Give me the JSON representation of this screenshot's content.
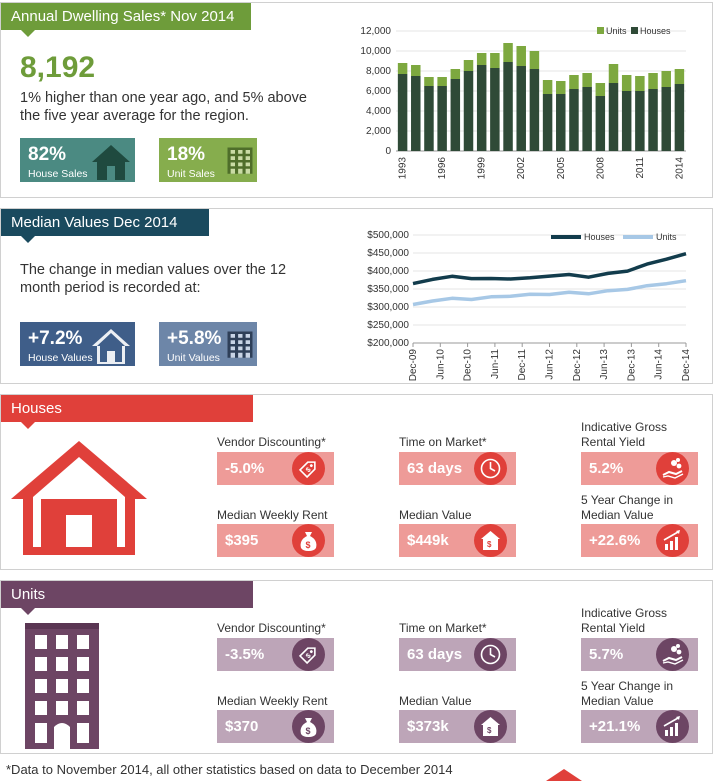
{
  "sales": {
    "tab_title": "Annual Dwelling Sales* Nov 2014",
    "big_number": "8,192",
    "description": "1% higher than one year ago, and 5% above the five year average for the region.",
    "tiles": [
      {
        "value": "82%",
        "label": "House Sales"
      },
      {
        "value": "18%",
        "label": "Unit Sales"
      }
    ],
    "colors": {
      "accent": "#6e9c3a",
      "houses": "#2f4a37",
      "units": "#7da83f",
      "tile_house": "#4b8a82",
      "tile_unit": "#86ad4d"
    }
  },
  "median": {
    "tab_title": "Median Values Dec 2014",
    "description": "The change in median values over the 12 month period is  recorded at:",
    "tiles": [
      {
        "value": "+7.2%",
        "label": "House Values"
      },
      {
        "value": "+5.8%",
        "label": "Unit Values"
      }
    ],
    "colors": {
      "accent": "#1a4a5e",
      "tile_house": "#3f5e89",
      "tile_unit": "#6d86a8",
      "houses_line": "#123c4c",
      "units_line": "#a7c8e6"
    }
  },
  "houses": {
    "tab_title": "Houses",
    "color": "#e0403a",
    "box_color": "#ee9b98",
    "stats": [
      {
        "label": "Vendor Discounting*",
        "value": "-5.0%",
        "icon": "tag-icon"
      },
      {
        "label": "Time on Market*",
        "value": "63 days",
        "icon": "clock-icon"
      },
      {
        "label": "Indicative Gross Rental Yield",
        "value": "5.2%",
        "icon": "hand-coins-icon"
      },
      {
        "label": "Median Weekly Rent",
        "value": "$395",
        "icon": "money-bag-icon"
      },
      {
        "label": "Median Value",
        "value": "$449k",
        "icon": "house-dollar-icon"
      },
      {
        "label": "5 Year Change in Median Value",
        "value": "+22.6%",
        "icon": "growth-chart-icon"
      }
    ]
  },
  "units": {
    "tab_title": "Units",
    "color": "#6d4564",
    "box_color": "#bda5b8",
    "stats": [
      {
        "label": "Vendor Discounting*",
        "value": "-3.5%",
        "icon": "tag-icon"
      },
      {
        "label": "Time on Market*",
        "value": "63 days",
        "icon": "clock-icon"
      },
      {
        "label": "Indicative Gross Rental Yield",
        "value": "5.7%",
        "icon": "hand-coins-icon"
      },
      {
        "label": "Median Weekly Rent",
        "value": "$370",
        "icon": "money-bag-icon"
      },
      {
        "label": "Median Value",
        "value": "$373k",
        "icon": "house-dollar-icon"
      },
      {
        "label": "5 Year Change in Median Value",
        "value": "+21.1%",
        "icon": "growth-chart-icon"
      }
    ]
  },
  "footnote": "*Data to November 2014, all other statistics based on data to December 2014",
  "chart_data": [
    {
      "type": "bar",
      "stacked": true,
      "categories": [
        "1993",
        "1994",
        "1995",
        "1996",
        "1997",
        "1998",
        "1999",
        "2000",
        "2001",
        "2002",
        "2003",
        "2004",
        "2005",
        "2006",
        "2007",
        "2008",
        "2009",
        "2010",
        "2011",
        "2012",
        "2013",
        "2014"
      ],
      "tick_labels": [
        "1993",
        "1996",
        "1999",
        "2002",
        "2005",
        "2008",
        "2011",
        "2014"
      ],
      "series": [
        {
          "name": "Houses",
          "values": [
            7700,
            7500,
            6500,
            6500,
            7200,
            8000,
            8600,
            8300,
            8900,
            8500,
            8200,
            5700,
            5700,
            6200,
            6400,
            5500,
            6800,
            6000,
            6000,
            6200,
            6400,
            6700
          ]
        },
        {
          "name": "Units",
          "values": [
            1100,
            1100,
            900,
            900,
            1000,
            1100,
            1200,
            1500,
            1900,
            2000,
            1800,
            1400,
            1300,
            1400,
            1400,
            1300,
            1900,
            1600,
            1500,
            1600,
            1600,
            1500
          ]
        }
      ],
      "ylim": [
        0,
        12000
      ],
      "yticks": [
        "0",
        "2,000",
        "4,000",
        "6,000",
        "8,000",
        "10,000",
        "12,000"
      ],
      "legend": "top-right"
    },
    {
      "type": "line",
      "x_tick_labels": [
        "Dec-09",
        "Jun-10",
        "Dec-10",
        "Jun-11",
        "Dec-11",
        "Jun-12",
        "Dec-12",
        "Jun-13",
        "Dec-13",
        "Jun-14",
        "Dec-14"
      ],
      "series": [
        {
          "name": "Houses",
          "values": [
            365000,
            378000,
            384000,
            380000,
            378000,
            379000,
            380000,
            387000,
            389000,
            384000,
            392000,
            401000,
            418000,
            434000,
            448000
          ]
        },
        {
          "name": "Units",
          "values": [
            307000,
            318000,
            323000,
            322000,
            327000,
            331000,
            334000,
            336000,
            340000,
            338000,
            344000,
            350000,
            358000,
            366000,
            373000
          ]
        }
      ],
      "ylim": [
        200000,
        500000
      ],
      "yticks": [
        "$200,000",
        "$250,000",
        "$300,000",
        "$350,000",
        "$400,000",
        "$450,000",
        "$500,000"
      ],
      "legend": "top-right"
    }
  ]
}
